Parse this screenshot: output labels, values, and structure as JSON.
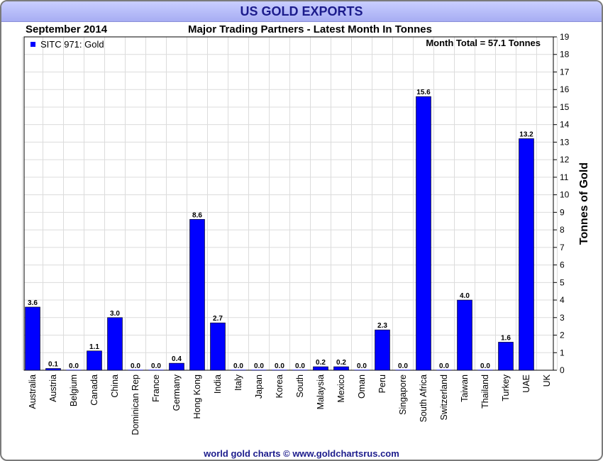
{
  "header": {
    "title": "US GOLD EXPORTS",
    "period": "September 2014",
    "subtitle": "Major Trading Partners - Latest Month In Tonnes"
  },
  "footer": "world gold charts © www.goldchartsrus.com",
  "chart_data": {
    "type": "bar",
    "title": "US GOLD EXPORTS",
    "subtitle": "Major Trading Partners - Latest Month In Tonnes",
    "period": "September 2014",
    "categories": [
      "Australia",
      "Austria",
      "Belgium",
      "Canada",
      "China",
      "Dominican Rep",
      "France",
      "Germany",
      "Hong Kong",
      "India",
      "Italy",
      "Japan",
      "Korea",
      "South",
      "Malaysia",
      "Mexico",
      "Oman",
      "Peru",
      "Singapore",
      "South Africa",
      "Switzerland",
      "Taiwan",
      "Thailand",
      "Turkey",
      "UAE",
      "UK"
    ],
    "series": [
      {
        "name": "SITC 971: Gold",
        "values": [
          3.6,
          0.1,
          0.0,
          1.1,
          3.0,
          0.0,
          0.0,
          0.4,
          8.6,
          2.7,
          0.0,
          0.0,
          0.0,
          0.0,
          0.2,
          0.2,
          0.0,
          2.3,
          0.0,
          15.6,
          0.0,
          4.0,
          0.0,
          1.6,
          13.2,
          null
        ],
        "labels": [
          "3.6",
          "0.1",
          "0.0",
          "1.1",
          "3.0",
          "0.0",
          "0.0",
          "0.4",
          "8.6",
          "2.7",
          "0.0",
          "0.0",
          "0.0",
          "0.0",
          "0.2",
          "0.2",
          "0.0",
          "2.3",
          "0.0",
          "15.6",
          "0.0",
          "4.0",
          "0.0",
          "1.6",
          "13.2",
          ""
        ],
        "color": "#0000ff"
      }
    ],
    "annotation": "Month Total = 57.1 Tonnes",
    "xlabel": "",
    "ylabel": "Tonnes of Gold",
    "ylim": [
      0,
      19
    ],
    "yticks": [
      0,
      1,
      2,
      3,
      4,
      5,
      6,
      7,
      8,
      9,
      10,
      11,
      12,
      13,
      14,
      15,
      16,
      17,
      18,
      19
    ],
    "y_axis_side": "right",
    "grid": true,
    "legend_position": "top-left"
  },
  "colors": {
    "bar": "#0000ff",
    "title": "#1c1c8c",
    "title_bar": "#b3b8f8",
    "grid": "#dcdcdc"
  }
}
